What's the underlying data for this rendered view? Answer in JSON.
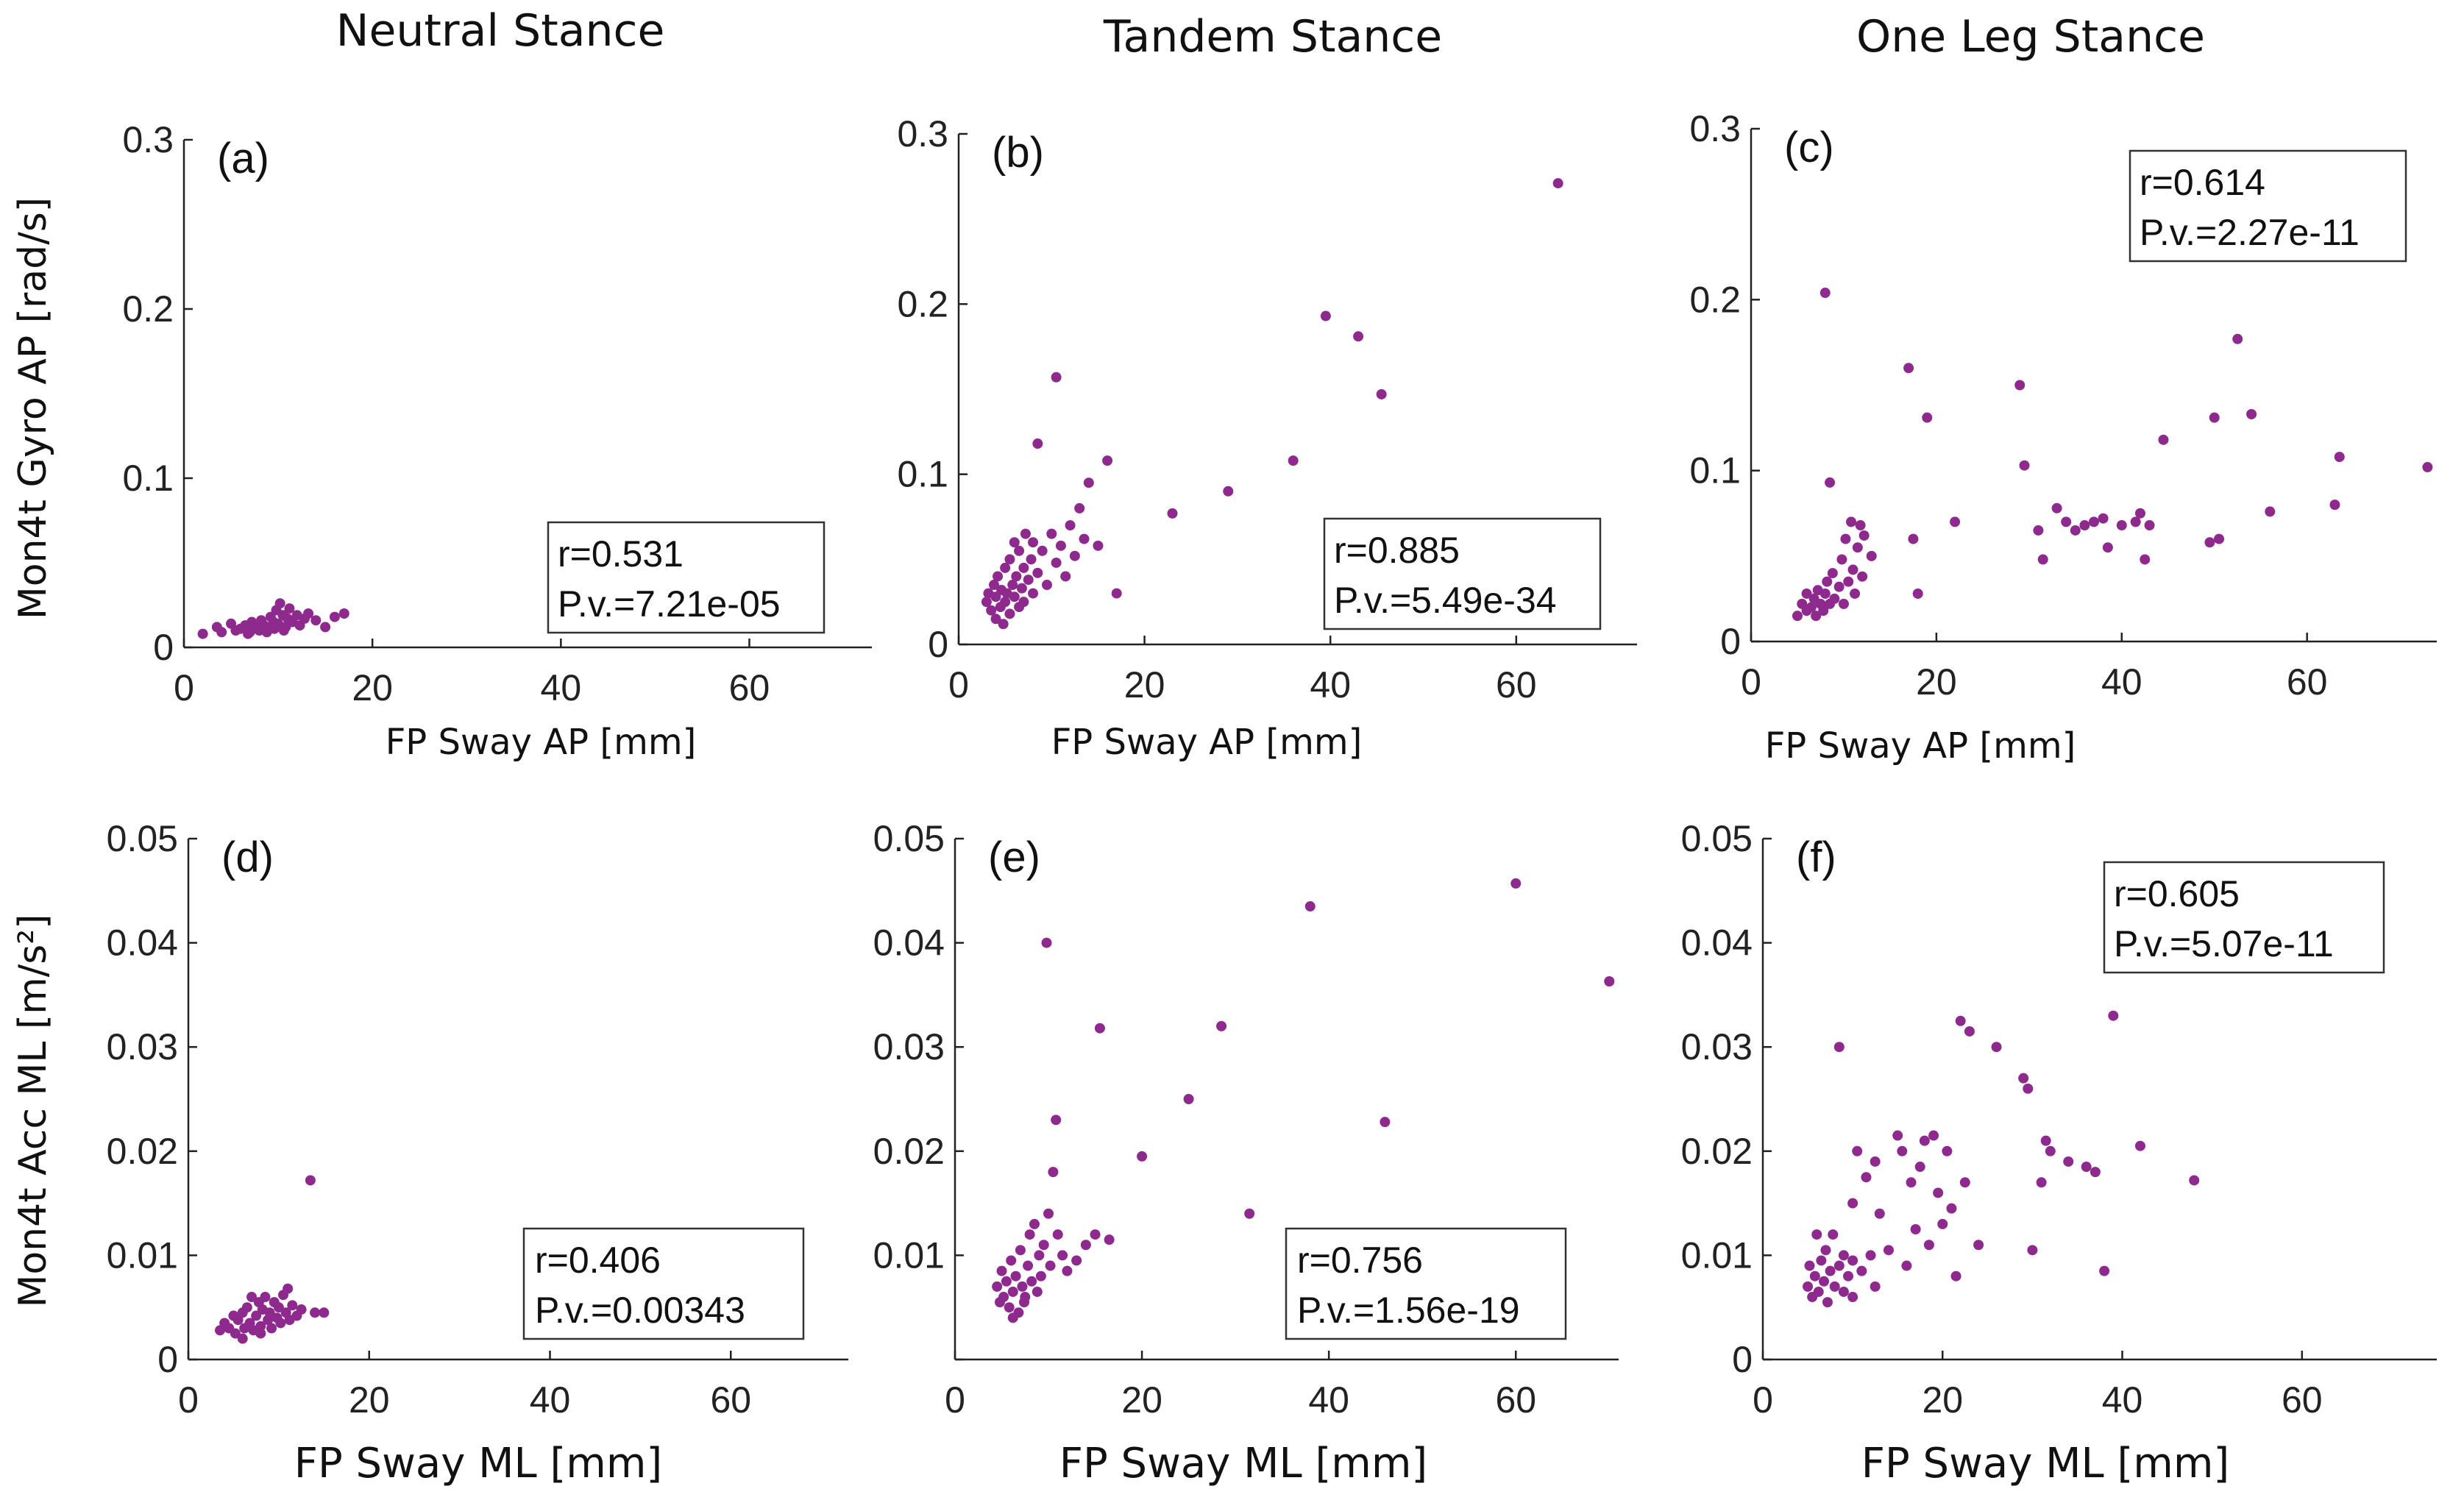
{
  "column_titles": [
    "Neutral Stance",
    "Tandem Stance",
    "One Leg Stance"
  ],
  "row_ylabels": [
    "Mon4t Gyro AP [rad/s]",
    "Mon4t Acc ML [m/s²]"
  ],
  "colors": {
    "points": "#8e2a8e",
    "axes": "#222222",
    "background": "#ffffff"
  },
  "chart_data": [
    {
      "type": "scatter",
      "panel": "(a)",
      "title": "Neutral Stance",
      "xlabel": "FP Sway AP [mm]",
      "ylabel": "Mon4t Gyro AP [rad/s]",
      "xlim": [
        0,
        73
      ],
      "ylim": [
        0,
        0.3
      ],
      "xticks": [
        0,
        20,
        40,
        60
      ],
      "yticks": [
        0,
        0.1,
        0.2,
        0.3
      ],
      "ytick_labels": [
        "0",
        "0.1",
        "0.2",
        "0.3"
      ],
      "stats": {
        "r": "r=0.531",
        "p": "P.v.=7.21e-05"
      },
      "points": [
        [
          2,
          0.008
        ],
        [
          3.5,
          0.012
        ],
        [
          4,
          0.009
        ],
        [
          5,
          0.014
        ],
        [
          5.5,
          0.01
        ],
        [
          6,
          0.011
        ],
        [
          6.5,
          0.013
        ],
        [
          7,
          0.009
        ],
        [
          7.2,
          0.015
        ],
        [
          7.5,
          0.012
        ],
        [
          8,
          0.01
        ],
        [
          8.2,
          0.016
        ],
        [
          8.5,
          0.013
        ],
        [
          9,
          0.011
        ],
        [
          9.2,
          0.018
        ],
        [
          9.5,
          0.015
        ],
        [
          9.8,
          0.022
        ],
        [
          10,
          0.014
        ],
        [
          10.2,
          0.026
        ],
        [
          10.5,
          0.019
        ],
        [
          10.8,
          0.012
        ],
        [
          11,
          0.017
        ],
        [
          11.2,
          0.023
        ],
        [
          11.5,
          0.015
        ],
        [
          12,
          0.019
        ],
        [
          12.3,
          0.013
        ],
        [
          12.8,
          0.017
        ],
        [
          13.2,
          0.02
        ],
        [
          14,
          0.016
        ],
        [
          15,
          0.012
        ],
        [
          16,
          0.018
        ],
        [
          17,
          0.02
        ],
        [
          6.8,
          0.008
        ],
        [
          8.8,
          0.009
        ],
        [
          9.6,
          0.011
        ],
        [
          10.6,
          0.01
        ]
      ]
    },
    {
      "type": "scatter",
      "panel": "(b)",
      "title": "Tandem Stance",
      "xlabel": "FP Sway AP [mm]",
      "ylabel": "",
      "xlim": [
        0,
        73
      ],
      "ylim": [
        0,
        0.3
      ],
      "xticks": [
        0,
        20,
        40,
        60
      ],
      "yticks": [
        0,
        0.1,
        0.2,
        0.3
      ],
      "ytick_labels": [
        "0",
        "0.1",
        "0.2",
        "0.3"
      ],
      "stats": {
        "r": "r=0.885",
        "p": "P.v.=5.49e-34"
      },
      "points": [
        [
          3,
          0.025
        ],
        [
          3.2,
          0.03
        ],
        [
          3.5,
          0.02
        ],
        [
          3.8,
          0.035
        ],
        [
          4,
          0.015
        ],
        [
          4,
          0.028
        ],
        [
          4.2,
          0.04
        ],
        [
          4.5,
          0.022
        ],
        [
          4.6,
          0.032
        ],
        [
          4.8,
          0.012
        ],
        [
          5,
          0.045
        ],
        [
          5,
          0.025
        ],
        [
          5.2,
          0.03
        ],
        [
          5.5,
          0.05
        ],
        [
          5.5,
          0.018
        ],
        [
          5.8,
          0.035
        ],
        [
          6,
          0.06
        ],
        [
          6,
          0.028
        ],
        [
          6.2,
          0.04
        ],
        [
          6.5,
          0.022
        ],
        [
          6.5,
          0.055
        ],
        [
          6.8,
          0.033
        ],
        [
          7,
          0.045
        ],
        [
          7,
          0.025
        ],
        [
          7.2,
          0.065
        ],
        [
          7.5,
          0.038
        ],
        [
          7.8,
          0.05
        ],
        [
          8,
          0.03
        ],
        [
          8,
          0.06
        ],
        [
          8.5,
          0.118
        ],
        [
          8.5,
          0.042
        ],
        [
          9,
          0.055
        ],
        [
          9.5,
          0.035
        ],
        [
          10,
          0.065
        ],
        [
          10.5,
          0.157
        ],
        [
          10.5,
          0.048
        ],
        [
          11,
          0.058
        ],
        [
          11.5,
          0.04
        ],
        [
          12,
          0.07
        ],
        [
          12.5,
          0.052
        ],
        [
          13,
          0.08
        ],
        [
          13.5,
          0.062
        ],
        [
          14,
          0.095
        ],
        [
          15,
          0.058
        ],
        [
          16,
          0.108
        ],
        [
          17,
          0.03
        ],
        [
          23,
          0.077
        ],
        [
          29,
          0.09
        ],
        [
          36,
          0.108
        ],
        [
          39.5,
          0.193
        ],
        [
          43,
          0.181
        ],
        [
          45.5,
          0.147
        ],
        [
          64.5,
          0.271
        ]
      ]
    },
    {
      "type": "scatter",
      "panel": "(c)",
      "title": "One Leg Stance",
      "xlabel": "FP Sway AP [mm]",
      "ylabel": "",
      "xlim": [
        0,
        74
      ],
      "ylim": [
        0,
        0.3
      ],
      "xticks": [
        0,
        20,
        40,
        60
      ],
      "yticks": [
        0,
        0.1,
        0.2,
        0.3
      ],
      "ytick_labels": [
        "0",
        "0.1",
        "0.2",
        "0.3"
      ],
      "stats": {
        "r": "r=0.614",
        "p": "P.v.=2.27e-11"
      },
      "points": [
        [
          5,
          0.015
        ],
        [
          5.5,
          0.022
        ],
        [
          6,
          0.018
        ],
        [
          6,
          0.028
        ],
        [
          6.5,
          0.02
        ],
        [
          6.8,
          0.025
        ],
        [
          7,
          0.015
        ],
        [
          7.2,
          0.03
        ],
        [
          7.5,
          0.022
        ],
        [
          7.8,
          0.018
        ],
        [
          8,
          0.204
        ],
        [
          8,
          0.028
        ],
        [
          8.2,
          0.035
        ],
        [
          8.5,
          0.093
        ],
        [
          8.5,
          0.022
        ],
        [
          8.8,
          0.04
        ],
        [
          9,
          0.025
        ],
        [
          9.5,
          0.032
        ],
        [
          9.8,
          0.048
        ],
        [
          10,
          0.022
        ],
        [
          10.2,
          0.06
        ],
        [
          10.5,
          0.035
        ],
        [
          10.8,
          0.07
        ],
        [
          11,
          0.042
        ],
        [
          11.2,
          0.028
        ],
        [
          11.5,
          0.055
        ],
        [
          11.8,
          0.068
        ],
        [
          12,
          0.038
        ],
        [
          12.2,
          0.062
        ],
        [
          13,
          0.05
        ],
        [
          17,
          0.16
        ],
        [
          17.5,
          0.06
        ],
        [
          18,
          0.028
        ],
        [
          19,
          0.131
        ],
        [
          22,
          0.07
        ],
        [
          29,
          0.15
        ],
        [
          29.5,
          0.103
        ],
        [
          31,
          0.065
        ],
        [
          31.5,
          0.048
        ],
        [
          33,
          0.078
        ],
        [
          34,
          0.07
        ],
        [
          35,
          0.065
        ],
        [
          36,
          0.068
        ],
        [
          37,
          0.07
        ],
        [
          38,
          0.072
        ],
        [
          38.5,
          0.055
        ],
        [
          40,
          0.068
        ],
        [
          41.5,
          0.07
        ],
        [
          42,
          0.075
        ],
        [
          42.5,
          0.048
        ],
        [
          43,
          0.068
        ],
        [
          44.5,
          0.118
        ],
        [
          49.5,
          0.058
        ],
        [
          50,
          0.131
        ],
        [
          50.5,
          0.06
        ],
        [
          52.5,
          0.177
        ],
        [
          54,
          0.133
        ],
        [
          56,
          0.076
        ],
        [
          63,
          0.08
        ],
        [
          63.5,
          0.108
        ],
        [
          73,
          0.102
        ]
      ]
    },
    {
      "type": "scatter",
      "panel": "(d)",
      "title": "",
      "xlabel": "FP Sway ML [mm]",
      "ylabel": "Mon4t Acc ML [m/s²]",
      "xlim": [
        0,
        73
      ],
      "ylim": [
        0,
        0.05
      ],
      "xticks": [
        0,
        20,
        40,
        60
      ],
      "yticks": [
        0,
        0.01,
        0.02,
        0.03,
        0.04,
        0.05
      ],
      "ytick_labels": [
        "0",
        "0.01",
        "0.02",
        "0.03",
        "0.04",
        "0.05"
      ],
      "stats": {
        "r": "r=0.406",
        "p": "P.v.=0.00343"
      },
      "points": [
        [
          3.5,
          0.0028
        ],
        [
          4,
          0.0035
        ],
        [
          4.5,
          0.003
        ],
        [
          5,
          0.0042
        ],
        [
          5.2,
          0.0025
        ],
        [
          5.5,
          0.0038
        ],
        [
          6,
          0.0045
        ],
        [
          6.2,
          0.003
        ],
        [
          6.5,
          0.005
        ],
        [
          6.8,
          0.0035
        ],
        [
          7,
          0.006
        ],
        [
          7.2,
          0.0028
        ],
        [
          7.5,
          0.0042
        ],
        [
          7.8,
          0.0055
        ],
        [
          8,
          0.0032
        ],
        [
          8.2,
          0.0048
        ],
        [
          8.5,
          0.006
        ],
        [
          8.8,
          0.0038
        ],
        [
          9,
          0.0045
        ],
        [
          9.2,
          0.003
        ],
        [
          9.5,
          0.0055
        ],
        [
          9.8,
          0.004
        ],
        [
          10,
          0.005
        ],
        [
          10.2,
          0.0035
        ],
        [
          10.5,
          0.0062
        ],
        [
          10.8,
          0.0045
        ],
        [
          11,
          0.0068
        ],
        [
          11.2,
          0.0038
        ],
        [
          11.5,
          0.0052
        ],
        [
          12,
          0.0042
        ],
        [
          12.5,
          0.0048
        ],
        [
          13.5,
          0.0172
        ],
        [
          14,
          0.0045
        ],
        [
          15,
          0.0045
        ],
        [
          6,
          0.002
        ],
        [
          8,
          0.0025
        ]
      ]
    },
    {
      "type": "scatter",
      "panel": "(e)",
      "title": "",
      "xlabel": "FP Sway ML [mm]",
      "ylabel": "",
      "xlim": [
        0,
        71
      ],
      "ylim": [
        0,
        0.05
      ],
      "xticks": [
        0,
        20,
        40,
        60
      ],
      "yticks": [
        0,
        0.01,
        0.02,
        0.03,
        0.04,
        0.05
      ],
      "ytick_labels": [
        "",
        "0.01",
        "0.02",
        "0.03",
        "0.04",
        "0.05"
      ],
      "stats": {
        "r": "r=0.756",
        "p": "P.v.=1.56e-19"
      },
      "points": [
        [
          4.5,
          0.007
        ],
        [
          4.8,
          0.0055
        ],
        [
          5,
          0.0085
        ],
        [
          5.2,
          0.006
        ],
        [
          5.5,
          0.0075
        ],
        [
          5.8,
          0.005
        ],
        [
          6,
          0.0095
        ],
        [
          6.2,
          0.0065
        ],
        [
          6.5,
          0.008
        ],
        [
          6.8,
          0.0045
        ],
        [
          7,
          0.0105
        ],
        [
          7.2,
          0.007
        ],
        [
          7.5,
          0.006
        ],
        [
          7.8,
          0.009
        ],
        [
          8,
          0.012
        ],
        [
          8.2,
          0.0075
        ],
        [
          8.5,
          0.013
        ],
        [
          8.8,
          0.0065
        ],
        [
          9,
          0.01
        ],
        [
          9.2,
          0.008
        ],
        [
          9.5,
          0.011
        ],
        [
          9.8,
          0.04
        ],
        [
          10,
          0.014
        ],
        [
          10.2,
          0.009
        ],
        [
          10.5,
          0.018
        ],
        [
          10.8,
          0.023
        ],
        [
          11,
          0.012
        ],
        [
          11.5,
          0.01
        ],
        [
          12,
          0.0085
        ],
        [
          13,
          0.0095
        ],
        [
          14,
          0.011
        ],
        [
          15,
          0.012
        ],
        [
          15.5,
          0.0318
        ],
        [
          16.5,
          0.0115
        ],
        [
          20,
          0.0195
        ],
        [
          25,
          0.025
        ],
        [
          28.5,
          0.032
        ],
        [
          31.5,
          0.014
        ],
        [
          38,
          0.0435
        ],
        [
          46,
          0.0228
        ],
        [
          60,
          0.0457
        ],
        [
          70,
          0.0363
        ],
        [
          6.2,
          0.004
        ],
        [
          7.4,
          0.0055
        ]
      ]
    },
    {
      "type": "scatter",
      "panel": "(f)",
      "title": "",
      "xlabel": "FP Sway ML [mm]",
      "ylabel": "",
      "xlim": [
        0,
        75
      ],
      "ylim": [
        0,
        0.05
      ],
      "xticks": [
        0,
        20,
        40,
        60
      ],
      "yticks": [
        0,
        0.01,
        0.02,
        0.03,
        0.04,
        0.05
      ],
      "ytick_labels": [
        "0",
        "0.01",
        "0.02",
        "0.03",
        "0.04",
        "0.05"
      ],
      "stats": {
        "r": "r=0.605",
        "p": "P.v.=5.07e-11"
      },
      "points": [
        [
          5,
          0.007
        ],
        [
          5.2,
          0.009
        ],
        [
          5.5,
          0.006
        ],
        [
          5.8,
          0.008
        ],
        [
          6,
          0.012
        ],
        [
          6.2,
          0.0065
        ],
        [
          6.5,
          0.0095
        ],
        [
          6.8,
          0.0075
        ],
        [
          7,
          0.0105
        ],
        [
          7.2,
          0.0055
        ],
        [
          7.5,
          0.0085
        ],
        [
          7.8,
          0.012
        ],
        [
          8,
          0.007
        ],
        [
          8.5,
          0.03
        ],
        [
          8.5,
          0.009
        ],
        [
          9,
          0.01
        ],
        [
          9,
          0.0065
        ],
        [
          9.5,
          0.008
        ],
        [
          10,
          0.015
        ],
        [
          10,
          0.0095
        ],
        [
          10.5,
          0.02
        ],
        [
          11,
          0.0085
        ],
        [
          11.5,
          0.0175
        ],
        [
          12,
          0.01
        ],
        [
          12.5,
          0.019
        ],
        [
          13,
          0.014
        ],
        [
          14,
          0.0105
        ],
        [
          15,
          0.0215
        ],
        [
          15.5,
          0.02
        ],
        [
          16,
          0.009
        ],
        [
          16.5,
          0.017
        ],
        [
          17,
          0.0125
        ],
        [
          17.5,
          0.0185
        ],
        [
          18,
          0.021
        ],
        [
          18.5,
          0.011
        ],
        [
          19,
          0.0215
        ],
        [
          19.5,
          0.016
        ],
        [
          20,
          0.013
        ],
        [
          20.5,
          0.02
        ],
        [
          21,
          0.0145
        ],
        [
          21.5,
          0.008
        ],
        [
          22,
          0.0325
        ],
        [
          22.5,
          0.017
        ],
        [
          23,
          0.0315
        ],
        [
          24,
          0.011
        ],
        [
          26,
          0.03
        ],
        [
          29,
          0.027
        ],
        [
          29.5,
          0.026
        ],
        [
          30,
          0.0105
        ],
        [
          31,
          0.017
        ],
        [
          31.5,
          0.021
        ],
        [
          32,
          0.02
        ],
        [
          34,
          0.019
        ],
        [
          36,
          0.0185
        ],
        [
          37,
          0.018
        ],
        [
          38,
          0.0085
        ],
        [
          39,
          0.033
        ],
        [
          42,
          0.0205
        ],
        [
          48,
          0.0172
        ],
        [
          10,
          0.006
        ],
        [
          12.5,
          0.007
        ]
      ]
    }
  ]
}
